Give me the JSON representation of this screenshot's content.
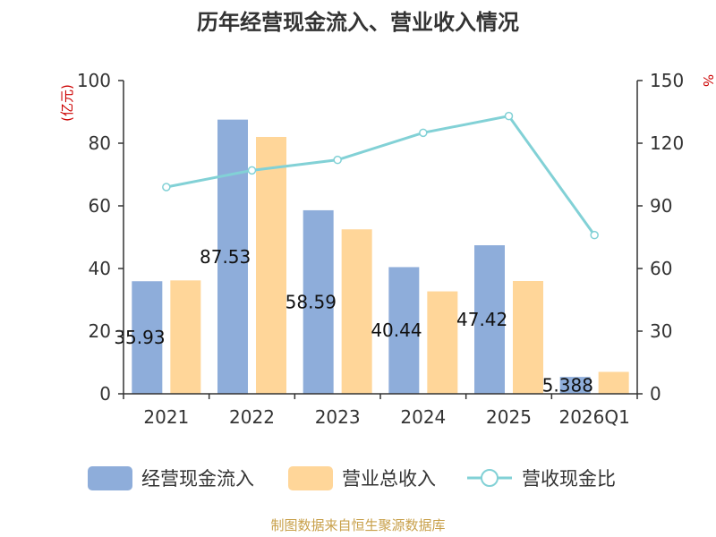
{
  "chart_data": {
    "type": "bar",
    "title": "历年经营现金流入、营业收入情况",
    "categories": [
      "2021",
      "2022",
      "2023",
      "2024",
      "2025",
      "2026Q1"
    ],
    "series": [
      {
        "name": "经营现金流入",
        "axis": "left",
        "values": [
          35.93,
          87.53,
          58.59,
          40.44,
          47.42,
          5.388
        ],
        "labels": [
          "35.93",
          "87.53",
          "58.59",
          "40.44",
          "47.42",
          "5.388"
        ]
      },
      {
        "name": "营业总收入",
        "axis": "left",
        "values": [
          36.2,
          82.0,
          52.5,
          32.7,
          36.0,
          7.0
        ]
      },
      {
        "name": "营收现金比",
        "type": "line",
        "axis": "right",
        "values": [
          99,
          107,
          112,
          125,
          133,
          76
        ]
      }
    ],
    "y_left": {
      "label": "(亿元)",
      "min": 0,
      "max": 100,
      "ticks": [
        0,
        20,
        40,
        60,
        80,
        100
      ]
    },
    "y_right": {
      "label": "%",
      "min": 0,
      "max": 150,
      "ticks": [
        0,
        30,
        60,
        90,
        120,
        150
      ]
    },
    "legend_position": "bottom",
    "grid": false,
    "colors": {
      "cash_inflow": "#8eadda",
      "revenue": "#ffd699",
      "ratio_line": "#82d1d6",
      "axis": "#333333",
      "axis_label": "#cc0000",
      "source": "#c8a04a"
    }
  },
  "source_note": "制图数据来自恒生聚源数据库"
}
